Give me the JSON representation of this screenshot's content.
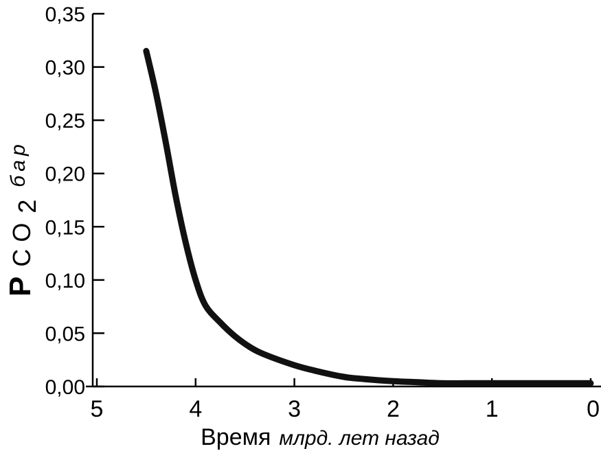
{
  "chart_data": {
    "type": "line",
    "title": "",
    "xlabel": "Время",
    "xlabel_suffix": "млрд. лет назад",
    "ylabel_p": "P",
    "ylabel_species": "CO",
    "ylabel_sub": "2",
    "ylabel_unit": "бар",
    "xlim": [
      5,
      0
    ],
    "ylim": [
      0,
      0.35
    ],
    "x_ticks": [
      "5",
      "4",
      "3",
      "2",
      "1",
      "0"
    ],
    "x_tick_values": [
      5,
      4,
      3,
      2,
      1,
      0
    ],
    "y_ticks": [
      "0,00",
      "0,05",
      "0,10",
      "0,15",
      "0,20",
      "0,25",
      "0,30",
      "0,35"
    ],
    "y_tick_values": [
      0,
      0.05,
      0.1,
      0.15,
      0.2,
      0.25,
      0.3,
      0.35
    ],
    "grid": false,
    "series": [
      {
        "x": [
          4.5,
          4.4,
          4.3,
          4.2,
          4.1,
          4.0,
          3.9,
          3.75,
          3.6,
          3.45,
          3.3,
          3.0,
          2.8,
          2.5,
          2.3,
          2.0,
          1.75,
          1.5,
          1.25,
          1.0,
          0.75,
          0.5,
          0.25,
          0.0
        ],
        "y": [
          0.315,
          0.275,
          0.228,
          0.178,
          0.135,
          0.1,
          0.076,
          0.06,
          0.047,
          0.037,
          0.03,
          0.02,
          0.015,
          0.009,
          0.007,
          0.005,
          0.004,
          0.003,
          0.003,
          0.003,
          0.003,
          0.003,
          0.003,
          0.003
        ]
      }
    ]
  }
}
